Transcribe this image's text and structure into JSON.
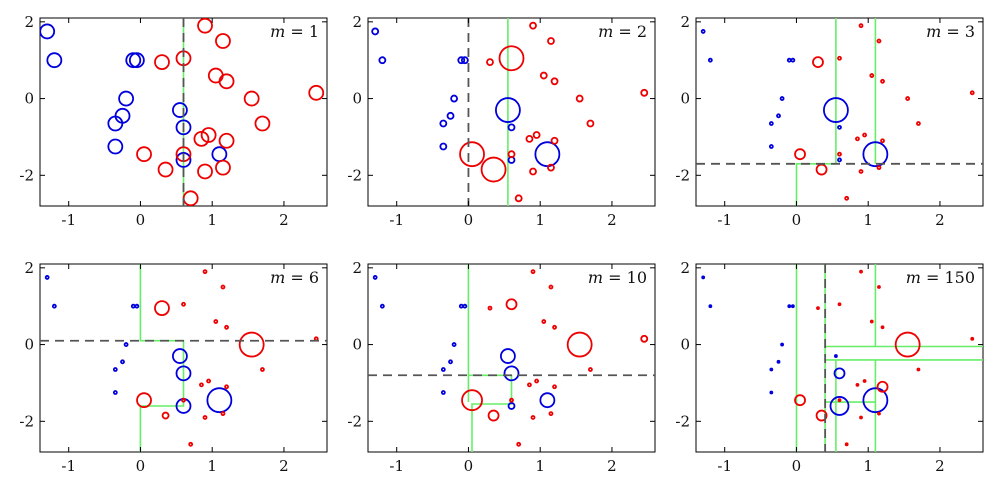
{
  "chart_data": {
    "type": "scatter",
    "xlim": [
      -1.4,
      2.6
    ],
    "ylim": [
      -2.8,
      2.1
    ],
    "xticks": [
      "-1",
      "0",
      "1",
      "2"
    ],
    "yticks": [
      "2",
      "0",
      "-2"
    ],
    "series_colors": {
      "blue": "#0000dd",
      "red": "#ee0000",
      "boundary": "#66ee66",
      "split": "#555555"
    },
    "points": {
      "blue": [
        [
          -1.3,
          1.75
        ],
        [
          -1.2,
          1.0
        ],
        [
          -0.05,
          1.0
        ],
        [
          -0.1,
          1.0
        ],
        [
          -0.2,
          0.0
        ],
        [
          -0.25,
          -0.45
        ],
        [
          -0.35,
          -0.65
        ],
        [
          -0.35,
          -1.25
        ],
        [
          0.55,
          -0.3
        ],
        [
          0.6,
          -0.75
        ],
        [
          0.6,
          -1.6
        ],
        [
          1.1,
          -1.45
        ]
      ],
      "red": [
        [
          0.9,
          1.9
        ],
        [
          1.15,
          1.5
        ],
        [
          0.6,
          1.05
        ],
        [
          0.3,
          0.95
        ],
        [
          1.05,
          0.6
        ],
        [
          1.2,
          0.45
        ],
        [
          1.55,
          0.0
        ],
        [
          2.45,
          0.15
        ],
        [
          1.7,
          -0.65
        ],
        [
          0.95,
          -0.95
        ],
        [
          0.85,
          -1.05
        ],
        [
          1.2,
          -1.1
        ],
        [
          0.05,
          -1.45
        ],
        [
          0.6,
          -1.45
        ],
        [
          0.35,
          -1.85
        ],
        [
          0.9,
          -1.9
        ],
        [
          1.15,
          -1.8
        ],
        [
          0.7,
          -2.6
        ]
      ]
    },
    "panels": [
      {
        "label_var": "m",
        "label_eq": " = 1",
        "blue_sizes": [
          7,
          7,
          7,
          7,
          7,
          7,
          7,
          7,
          7,
          7,
          7,
          7
        ],
        "red_sizes": [
          7,
          7,
          7,
          7,
          7,
          7,
          7,
          7,
          7,
          7,
          7,
          7,
          7,
          7,
          7,
          7,
          7,
          7
        ],
        "splits": [
          {
            "orient": "v",
            "at": 0.6
          }
        ],
        "boundaries": [
          [
            [
              0.6,
              2.1
            ],
            [
              0.6,
              -2.8
            ]
          ]
        ]
      },
      {
        "label_var": "m",
        "label_eq": " = 2",
        "blue_sizes": [
          3,
          3,
          3,
          3,
          3,
          3,
          3,
          3,
          12,
          3,
          3,
          12
        ],
        "red_sizes": [
          3,
          3,
          12,
          3,
          3,
          3,
          3,
          3,
          3,
          3,
          3,
          3,
          12,
          3,
          12,
          3,
          3,
          3
        ],
        "splits": [
          {
            "orient": "v",
            "at": 0.0
          }
        ],
        "boundaries": [
          [
            [
              0.55,
              2.1
            ],
            [
              0.55,
              -2.8
            ]
          ]
        ]
      },
      {
        "label_var": "m",
        "label_eq": " = 3",
        "blue_sizes": [
          1.5,
          1.5,
          1.5,
          1.5,
          1.5,
          1.5,
          1.5,
          1.5,
          12,
          1.5,
          1.5,
          12
        ],
        "red_sizes": [
          1.5,
          1.5,
          1.5,
          5,
          1.5,
          1.5,
          1.5,
          1.5,
          1.5,
          1.5,
          1.5,
          1.5,
          5,
          1.5,
          5,
          1.5,
          1.5,
          1.5
        ],
        "splits": [
          {
            "orient": "h",
            "at": -1.7
          }
        ],
        "boundaries": [
          [
            [
              0.55,
              2.1
            ],
            [
              0.55,
              -1.7
            ],
            [
              0.0,
              -1.7
            ],
            [
              0.0,
              -2.8
            ]
          ],
          [
            [
              1.1,
              2.1
            ],
            [
              1.1,
              -1.7
            ]
          ]
        ]
      },
      {
        "label_var": "m",
        "label_eq": " = 6",
        "blue_sizes": [
          1.5,
          1.5,
          1.5,
          1.5,
          1.5,
          1.5,
          1.5,
          1.5,
          7,
          7,
          7,
          12
        ],
        "red_sizes": [
          1.5,
          1.5,
          1.5,
          7,
          1.5,
          1.5,
          12,
          1.5,
          1.5,
          1.5,
          1.5,
          1.5,
          7,
          1.5,
          3,
          1.5,
          1.5,
          1.5
        ],
        "splits": [
          {
            "orient": "h",
            "at": 0.1
          }
        ],
        "boundaries": [
          [
            [
              0.0,
              2.1
            ],
            [
              0.0,
              0.1
            ],
            [
              0.6,
              0.1
            ],
            [
              0.6,
              -1.6
            ],
            [
              0.0,
              -1.6
            ],
            [
              0.0,
              -2.8
            ]
          ]
        ]
      },
      {
        "label_var": "m",
        "label_eq": " = 10",
        "blue_sizes": [
          1.5,
          1.5,
          1.5,
          1.5,
          1.5,
          1.5,
          1.5,
          1.5,
          7,
          7,
          3,
          7
        ],
        "red_sizes": [
          1.5,
          1.5,
          5,
          1.5,
          1.5,
          1.5,
          12,
          3,
          1.5,
          1.5,
          1.5,
          1.5,
          10,
          1.5,
          5,
          1.5,
          1.5,
          1.5
        ],
        "splits": [
          {
            "orient": "h",
            "at": -0.8
          }
        ],
        "boundaries": [
          [
            [
              0.0,
              2.1
            ],
            [
              0.0,
              -0.8
            ],
            [
              0.6,
              -0.8
            ],
            [
              0.6,
              -1.55
            ],
            [
              0.05,
              -1.55
            ],
            [
              0.05,
              -2.8
            ]
          ],
          [
            [
              0.0,
              -0.8
            ],
            [
              0.0,
              -1.5
            ]
          ]
        ]
      },
      {
        "label_var": "m",
        "label_eq": " = 150",
        "blue_sizes": [
          1,
          1,
          1,
          1,
          1,
          1,
          1,
          1,
          1,
          5,
          9,
          12
        ],
        "red_sizes": [
          1,
          1,
          1,
          1,
          1,
          1,
          12,
          1,
          1,
          1,
          1,
          5,
          5,
          1,
          5,
          1,
          1,
          1
        ],
        "splits": [
          {
            "orient": "v",
            "at": 0.4
          }
        ],
        "boundaries": [
          [
            [
              0.0,
              2.1
            ],
            [
              0.0,
              -2.8
            ]
          ],
          [
            [
              0.4,
              2.1
            ],
            [
              0.4,
              -0.05
            ],
            [
              2.6,
              -0.05
            ]
          ],
          [
            [
              0.4,
              -0.05
            ],
            [
              0.4,
              -2.8
            ]
          ],
          [
            [
              1.1,
              2.1
            ],
            [
              1.1,
              -0.05
            ]
          ],
          [
            [
              0.4,
              -0.4
            ],
            [
              2.6,
              -0.4
            ]
          ],
          [
            [
              0.55,
              -0.4
            ],
            [
              0.55,
              -2.8
            ]
          ],
          [
            [
              1.1,
              -0.4
            ],
            [
              1.1,
              -2.8
            ]
          ],
          [
            [
              0.4,
              -1.5
            ],
            [
              1.1,
              -1.5
            ]
          ]
        ]
      }
    ]
  }
}
